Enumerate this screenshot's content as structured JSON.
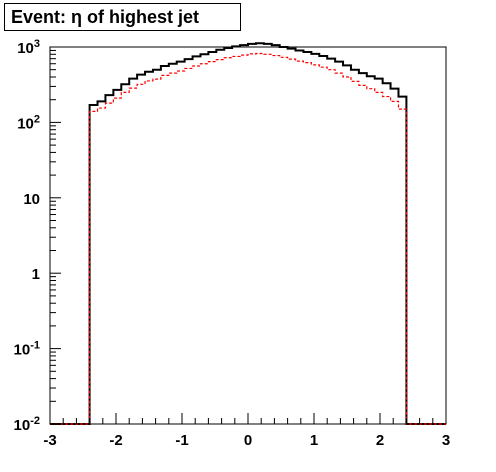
{
  "chart_data": {
    "type": "step-histogram",
    "title": "Event: η of highest jet",
    "xlabel": "",
    "ylabel": "",
    "xlim": [
      -3,
      3
    ],
    "ylim": [
      0.01,
      1000
    ],
    "yscale": "log",
    "grid": false,
    "x_ticks": [
      "-3",
      "-2",
      "-1",
      "0",
      "1",
      "2",
      "3"
    ],
    "y_ticks": [
      {
        "value": 0.01,
        "base": "10",
        "exp": "-2"
      },
      {
        "value": 0.1,
        "base": "10",
        "exp": "-1"
      },
      {
        "value": 1,
        "base": "1",
        "exp": ""
      },
      {
        "value": 10,
        "base": "10",
        "exp": ""
      },
      {
        "value": 100,
        "base": "10",
        "exp": "2"
      },
      {
        "value": 1000,
        "base": "10",
        "exp": "3"
      }
    ],
    "bin_edges": [
      -3.0,
      -2.88,
      -2.76,
      -2.64,
      -2.52,
      -2.4,
      -2.28,
      -2.16,
      -2.04,
      -1.92,
      -1.8,
      -1.68,
      -1.56,
      -1.44,
      -1.32,
      -1.2,
      -1.08,
      -0.96,
      -0.84,
      -0.72,
      -0.6,
      -0.48,
      -0.36,
      -0.24,
      -0.12,
      0.0,
      0.12,
      0.24,
      0.36,
      0.48,
      0.6,
      0.72,
      0.84,
      0.96,
      1.08,
      1.2,
      1.32,
      1.44,
      1.56,
      1.68,
      1.8,
      1.92,
      2.04,
      2.16,
      2.28,
      2.4,
      2.52,
      2.64,
      2.76,
      2.88,
      3.0
    ],
    "series": [
      {
        "color": "#000000",
        "style": "solid",
        "values": [
          0.01,
          0.01,
          0.01,
          0.01,
          0.01,
          170,
          190,
          230,
          270,
          320,
          380,
          430,
          470,
          500,
          560,
          600,
          640,
          690,
          750,
          800,
          860,
          920,
          970,
          1020,
          1060,
          1100,
          1120,
          1100,
          1060,
          1000,
          950,
          900,
          860,
          810,
          760,
          700,
          640,
          570,
          500,
          450,
          410,
          380,
          330,
          280,
          220,
          0.01,
          0.01,
          0.01,
          0.01,
          0.01
        ]
      },
      {
        "color": "#ff0000",
        "style": "dashed",
        "values": [
          0.01,
          0.01,
          0.01,
          0.01,
          0.01,
          140,
          155,
          180,
          210,
          250,
          285,
          320,
          355,
          375,
          420,
          450,
          480,
          520,
          560,
          600,
          640,
          680,
          720,
          750,
          780,
          810,
          820,
          800,
          770,
          730,
          690,
          650,
          620,
          580,
          540,
          500,
          450,
          400,
          350,
          310,
          280,
          250,
          220,
          190,
          150,
          0.01,
          0.01,
          0.01,
          0.01,
          0.01
        ]
      }
    ]
  }
}
